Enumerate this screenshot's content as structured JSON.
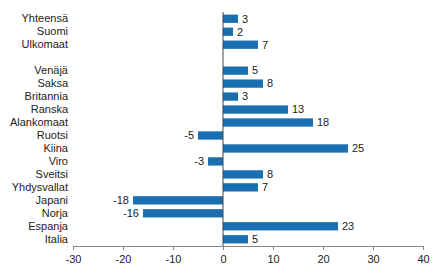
{
  "chart_data": {
    "type": "bar",
    "orientation": "horizontal",
    "categories": [
      "Yhteensä",
      "Suomi",
      "Ulkomaat",
      null,
      "Venäjä",
      "Saksa",
      "Britannia",
      "Ranska",
      "Alankomaat",
      "Ruotsi",
      "Kiina",
      "Viro",
      "Sveitsi",
      "Yhdysvallat",
      "Japani",
      "Norja",
      "Espanja",
      "Italia"
    ],
    "values": [
      3,
      2,
      7,
      null,
      5,
      8,
      3,
      13,
      18,
      -5,
      25,
      -3,
      8,
      7,
      -18,
      -16,
      23,
      5
    ],
    "color": "#1a6fb0",
    "xlim": [
      -30,
      40
    ],
    "xticks": [
      -30,
      -20,
      -10,
      0,
      10,
      20,
      30,
      40
    ],
    "data_labels": true
  }
}
